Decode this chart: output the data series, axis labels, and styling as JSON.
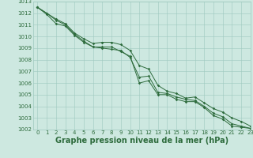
{
  "xlabel": "Graphe pression niveau de la mer (hPa)",
  "xlim": [
    -0.5,
    23
  ],
  "ylim": [
    1002,
    1013
  ],
  "yticks": [
    1002,
    1003,
    1004,
    1005,
    1006,
    1007,
    1008,
    1009,
    1010,
    1011,
    1012,
    1013
  ],
  "xticks": [
    0,
    1,
    2,
    3,
    4,
    5,
    6,
    7,
    8,
    9,
    10,
    11,
    12,
    13,
    14,
    15,
    16,
    17,
    18,
    19,
    20,
    21,
    22,
    23
  ],
  "background_color": "#cde8e0",
  "grid_color": "#9ec8be",
  "line_color": "#2d6b3c",
  "line1": [
    1012.5,
    1012.0,
    1011.5,
    1011.1,
    1010.3,
    1009.8,
    1009.4,
    1009.5,
    1009.5,
    1009.3,
    1008.8,
    1007.5,
    1007.2,
    1005.8,
    1005.3,
    1005.1,
    1004.7,
    1004.8,
    1004.3,
    1003.8,
    1003.5,
    1003.0,
    1002.7,
    1002.3
  ],
  "line2": [
    1012.5,
    1012.0,
    1011.4,
    1011.0,
    1010.2,
    1009.6,
    1009.1,
    1009.0,
    1008.9,
    1008.8,
    1008.2,
    1006.5,
    1006.6,
    1005.2,
    1005.1,
    1004.8,
    1004.6,
    1004.5,
    1004.0,
    1003.4,
    1003.1,
    1002.5,
    1002.3,
    1002.1
  ],
  "line3": [
    1012.5,
    1011.9,
    1011.1,
    1010.9,
    1010.1,
    1009.5,
    1009.1,
    1009.1,
    1009.1,
    1008.7,
    1008.3,
    1006.0,
    1006.2,
    1005.0,
    1005.0,
    1004.6,
    1004.4,
    1004.4,
    1003.9,
    1003.2,
    1002.9,
    1002.3,
    1002.2,
    1002.1
  ],
  "font_color": "#2d6b3c",
  "tick_fontsize": 5,
  "xlabel_fontsize": 7
}
